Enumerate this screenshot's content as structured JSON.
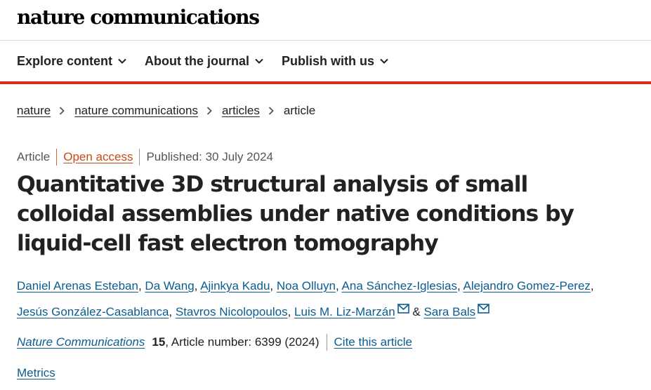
{
  "header": {
    "logo_text": "nature communications"
  },
  "nav": {
    "items": [
      {
        "label": "Explore content"
      },
      {
        "label": "About the journal"
      },
      {
        "label": "Publish with us"
      }
    ]
  },
  "breadcrumb": {
    "items": [
      "nature",
      "nature communications",
      "articles"
    ],
    "current": "article"
  },
  "article": {
    "type": "Article",
    "access": "Open access",
    "published": "Published: 30 July 2024",
    "title": "Quantitative 3D structural analysis of small colloidal assemblies under native conditions by liquid-cell fast electron tomography",
    "authors": [
      "Daniel Arenas Esteban",
      "Da Wang",
      "Ajinkya Kadu",
      "Noa Olluyn",
      "Ana Sánchez-Iglesias",
      "Alejandro Gomez-Perez",
      "Jesús González-Casablanca",
      "Stavros Nicolopoulos",
      "Luis M. Liz-Marzán",
      "Sara Bals"
    ],
    "author_sep": ",",
    "author_amp": "&"
  },
  "citation": {
    "journal": "Nature Communications",
    "volume": "15",
    "article_number": ", Article number: 6399 (2024)",
    "cite_label": "Cite this article"
  },
  "metrics_label": "Metrics",
  "colors": {
    "accent_red": "#e0291b",
    "link_blue": "#0b5c8f",
    "open_access": "#c44c17"
  },
  "icons": {
    "chevron": "chevron-down-icon",
    "crumb_separator": "chevron-right-icon",
    "email": "mail-icon"
  }
}
